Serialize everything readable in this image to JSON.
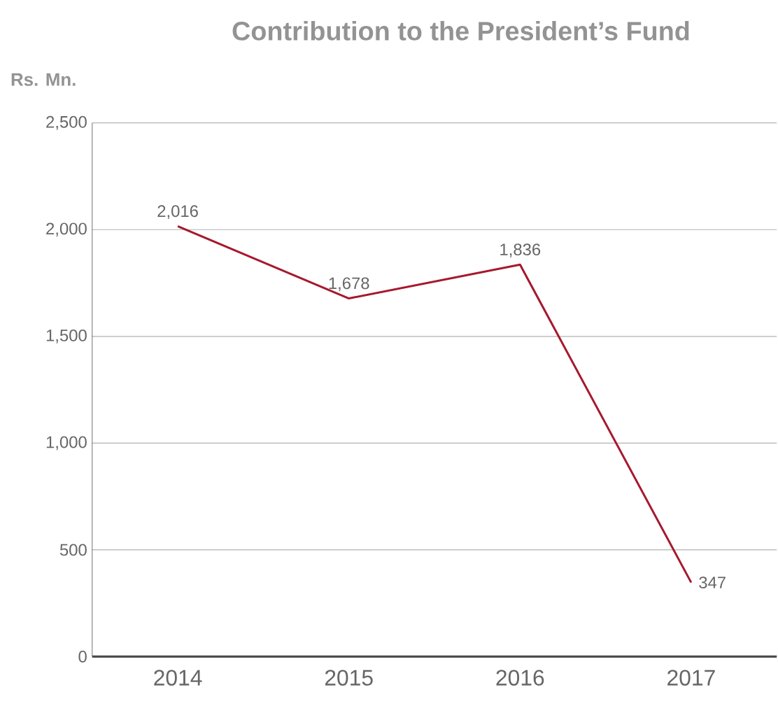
{
  "chart_data": {
    "type": "line",
    "title": "Contribution to the President’s Fund",
    "ylabel": "Rs. Mn.",
    "categories": [
      "2014",
      "2015",
      "2016",
      "2017"
    ],
    "series": [
      {
        "color": "#a6192e",
        "values": [
          2016,
          1678,
          1836,
          347
        ],
        "value_labels": [
          "2,016",
          "1,678",
          "1,836",
          "347"
        ]
      }
    ],
    "ylim": [
      0,
      2500
    ],
    "yticks": [
      0,
      500,
      {
        "value": 1000,
        "label": "1,000"
      },
      {
        "value": 1500,
        "label": "1,500"
      },
      {
        "value": 2000,
        "label": "2,000"
      },
      {
        "value": 2500,
        "label": "2,500"
      }
    ],
    "grid": "y",
    "marker": "none",
    "line_style": "solid"
  }
}
